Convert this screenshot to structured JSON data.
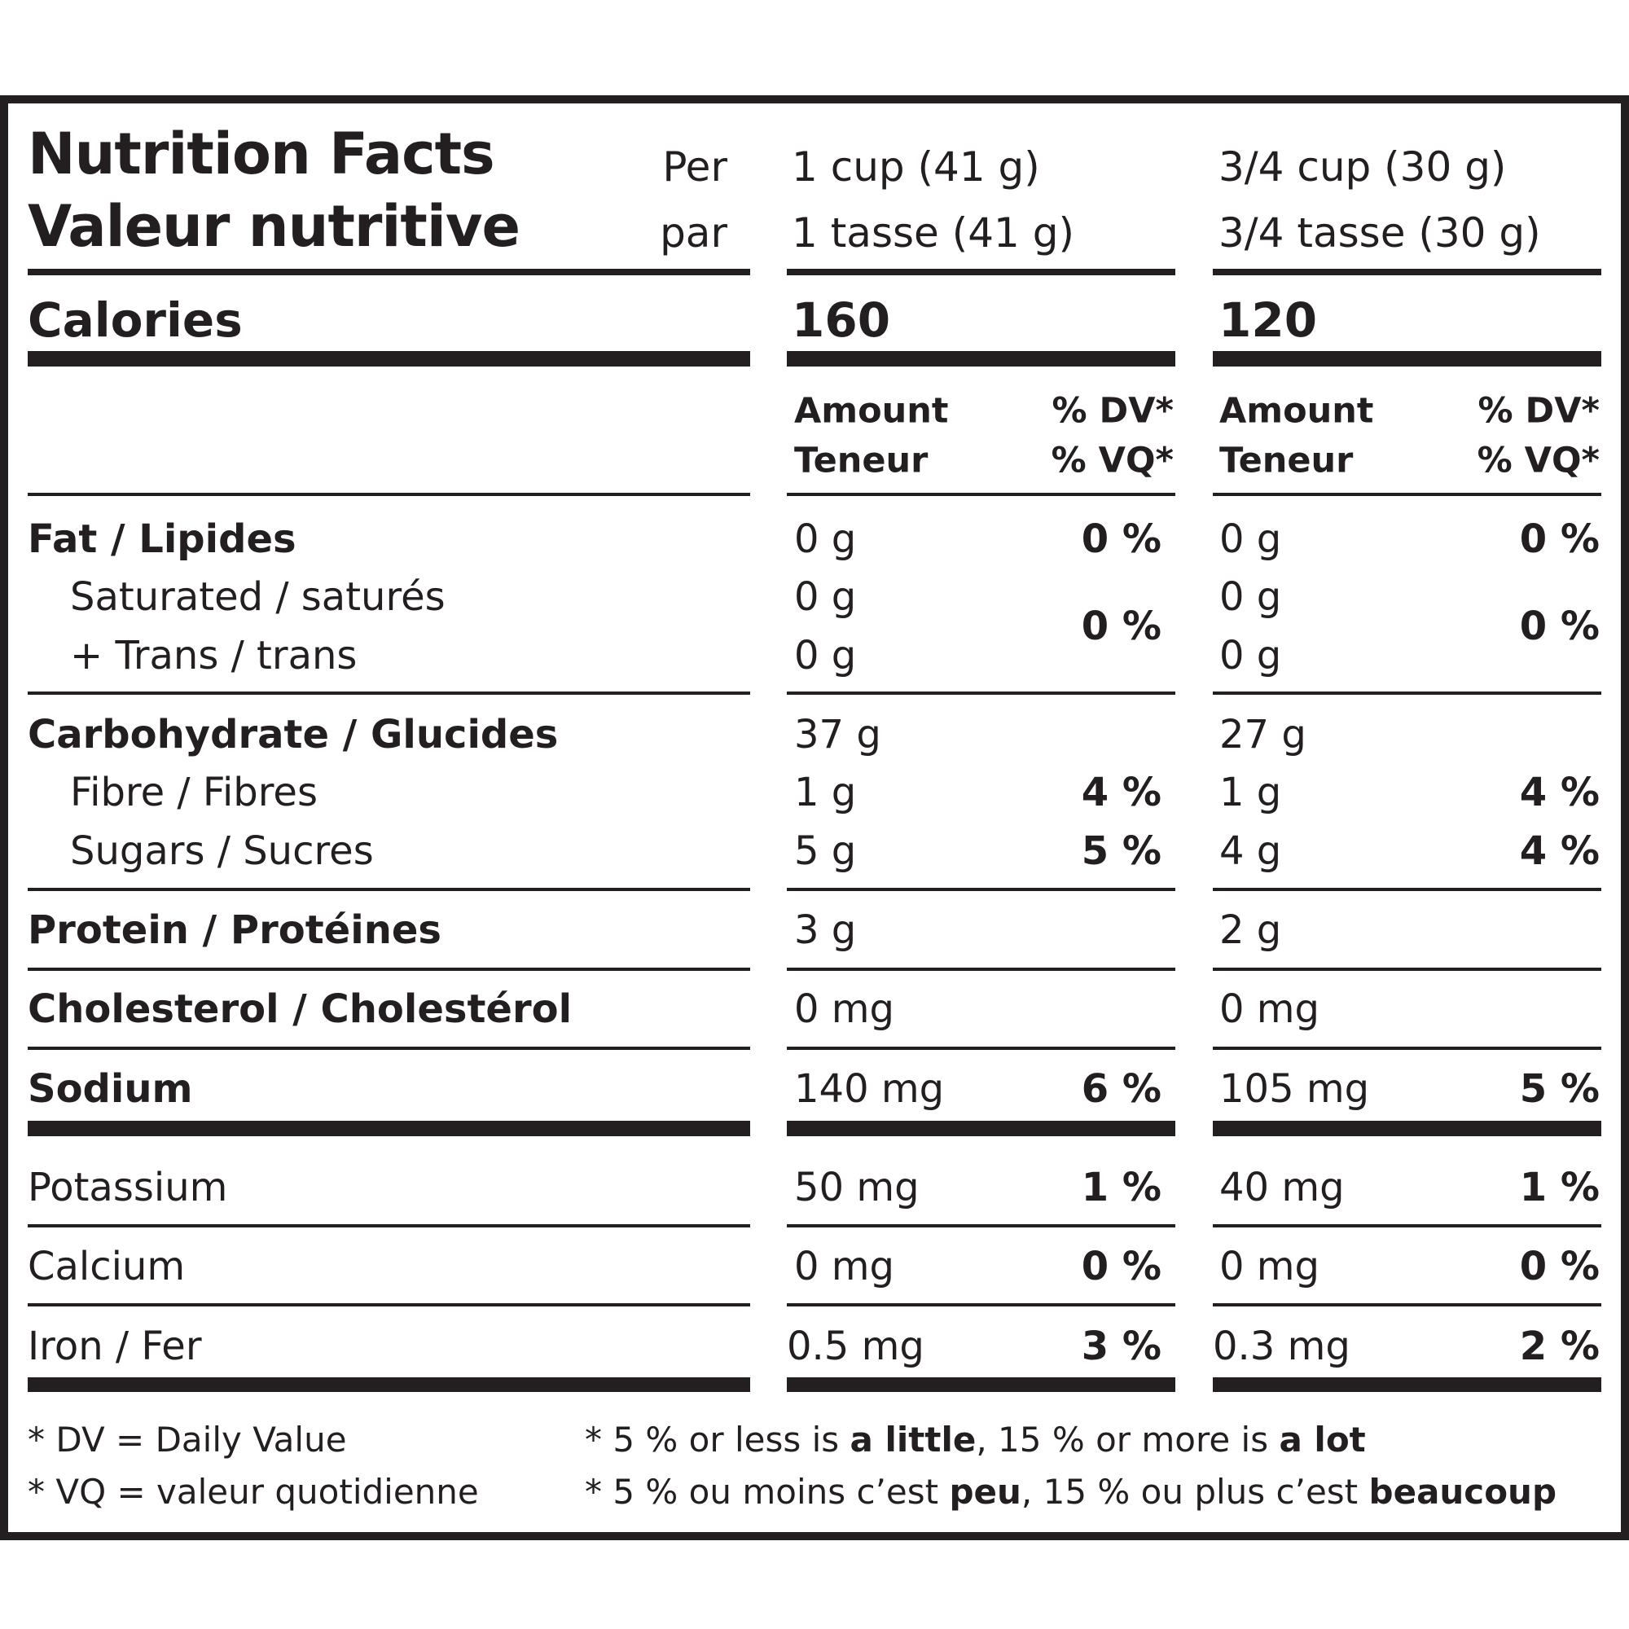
{
  "header": {
    "title_en": "Nutrition Facts",
    "title_fr": "Valeur nutritive",
    "per_en": "Per",
    "per_fr": "par",
    "serving1_en": "1 cup (41 g)",
    "serving1_fr": "1 tasse (41 g)",
    "serving2_en": "3/4 cup (30 g)",
    "serving2_fr": "3/4 tasse (30 g)"
  },
  "calories": {
    "label": "Calories",
    "value1": "160",
    "value2": "120"
  },
  "columns": {
    "amount_en": "Amount",
    "amount_fr": "Teneur",
    "dv_en": "% DV*",
    "dv_fr": "% VQ*"
  },
  "rows": [
    {
      "label": "Fat / Lipides",
      "bold": true,
      "indent": false,
      "a1": "0 g",
      "p1": "0 %",
      "a2": "0 g",
      "p2": "0 %"
    },
    {
      "label": "Saturated / saturés",
      "bold": false,
      "indent": true,
      "a1": "0 g",
      "p1": "",
      "a2": "0 g",
      "p2": ""
    },
    {
      "label": "+ Trans / trans",
      "bold": false,
      "indent": true,
      "a1": "0 g",
      "p1": "",
      "a2": "0 g",
      "p2": ""
    },
    {
      "label": "Carbohydrate / Glucides",
      "bold": true,
      "indent": false,
      "a1": "37 g",
      "p1": "",
      "a2": "27 g",
      "p2": ""
    },
    {
      "label": "Fibre / Fibres",
      "bold": false,
      "indent": true,
      "a1": "1 g",
      "p1": "4 %",
      "a2": "1 g",
      "p2": "4 %"
    },
    {
      "label": "Sugars / Sucres",
      "bold": false,
      "indent": true,
      "a1": "5 g",
      "p1": "5 %",
      "a2": "4 g",
      "p2": "4 %"
    },
    {
      "label": "Protein / Protéines",
      "bold": true,
      "indent": false,
      "a1": "3 g",
      "p1": "",
      "a2": "2 g",
      "p2": ""
    },
    {
      "label": "Cholesterol / Cholestérol",
      "bold": true,
      "indent": false,
      "a1": "0 mg",
      "p1": "",
      "a2": "0 mg",
      "p2": ""
    },
    {
      "label": "Sodium",
      "bold": true,
      "indent": false,
      "a1": "140 mg",
      "p1": "6 %",
      "a2": "105 mg",
      "p2": "5 %"
    },
    {
      "label": "Potassium",
      "bold": false,
      "indent": false,
      "a1": "50 mg",
      "p1": "1 %",
      "a2": "40 mg",
      "p2": "1 %"
    },
    {
      "label": "Calcium",
      "bold": false,
      "indent": false,
      "a1": "0 mg",
      "p1": "0 %",
      "a2": "0 mg",
      "p2": "0 %"
    },
    {
      "label": "Iron / Fer",
      "bold": false,
      "indent": false,
      "a1": "0.5 mg",
      "p1": "3 %",
      "a2": "0.3 mg",
      "p2": "2 %"
    }
  ],
  "sat_trans_dv": {
    "p1": "0 %",
    "p2": "0 %"
  },
  "footer": {
    "dv_def": "* DV = Daily Value",
    "vq_def": "* VQ = valeur quotidienne",
    "en_pre": "* 5 % or less is ",
    "en_b1": "a little",
    "en_mid": ", 15 % or more is ",
    "en_b2": "a lot",
    "fr_pre": "* 5 % ou moins c’est ",
    "fr_b1": "peu",
    "fr_mid": ", 15 % ou plus c’est ",
    "fr_b2": "beaucoup"
  }
}
